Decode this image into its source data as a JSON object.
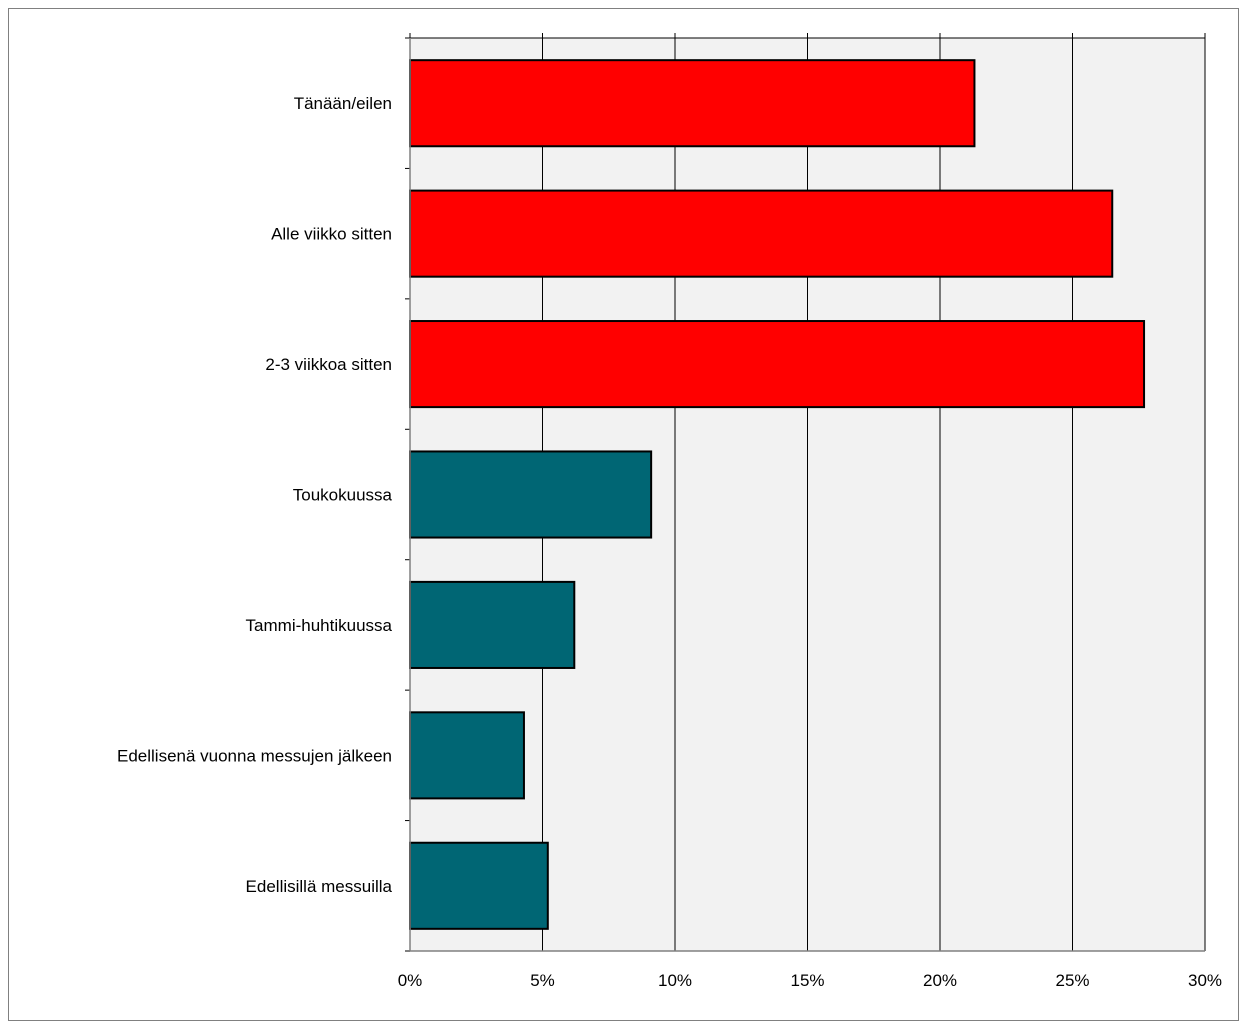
{
  "chart_data": {
    "type": "bar",
    "orientation": "horizontal",
    "categories": [
      "Tänään/eilen",
      "Alle viikko sitten",
      "2-3 viikkoa sitten",
      "Toukokuussa",
      "Tammi-huhtikuussa",
      "Edellisenä vuonna messujen jälkeen",
      "Edellisillä messuilla"
    ],
    "values": [
      21.3,
      26.5,
      27.7,
      9.1,
      6.2,
      4.3,
      5.2
    ],
    "bar_colors": [
      "#ff0000",
      "#ff0000",
      "#ff0000",
      "#006674",
      "#006674",
      "#006674",
      "#006674"
    ],
    "xlim": [
      0,
      30
    ],
    "x_ticks": [
      0,
      5,
      10,
      15,
      20,
      25,
      30
    ],
    "x_tick_labels": [
      "0%",
      "5%",
      "10%",
      "15%",
      "20%",
      "25%",
      "30%"
    ],
    "grid": true,
    "title": "",
    "xlabel": "",
    "ylabel": "",
    "colors": {
      "plot_background": "#f2f2f2",
      "gridline": "#000000",
      "frame": "#000000"
    }
  }
}
